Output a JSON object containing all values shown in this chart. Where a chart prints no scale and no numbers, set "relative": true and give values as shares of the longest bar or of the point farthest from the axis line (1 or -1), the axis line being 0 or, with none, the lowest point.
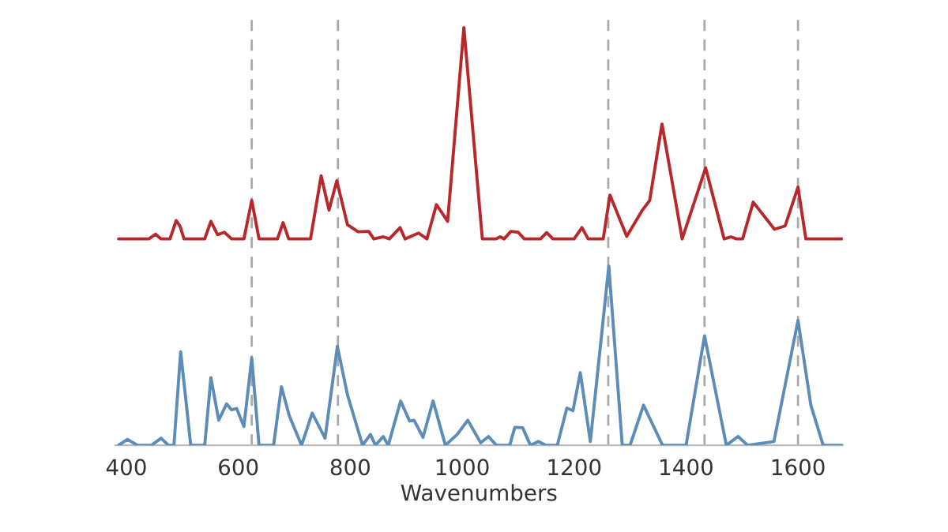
{
  "chart_data": {
    "type": "line",
    "relative": true,
    "xlabel": "Wavenumbers",
    "xlim": [
      380,
      1680
    ],
    "xticks": [
      400,
      600,
      800,
      1000,
      1200,
      1400,
      1600
    ],
    "grid": false,
    "legend": false,
    "marker": "none",
    "line_style": "solid",
    "series": [
      {
        "color": "#b8282a",
        "x": [
          386,
          440,
          452,
          462,
          478,
          489,
          496,
          503,
          540,
          551,
          563,
          575,
          588,
          610,
          624,
          637,
          670,
          680,
          690,
          729,
          748,
          762,
          776,
          795,
          814,
          833,
          842,
          859,
          870,
          889,
          898,
          922,
          937,
          954,
          974,
          1003,
          1036,
          1060,
          1068,
          1075,
          1087,
          1100,
          1111,
          1140,
          1151,
          1162,
          1200,
          1214,
          1225,
          1252,
          1264,
          1294,
          1321,
          1335,
          1357,
          1393,
          1435,
          1468,
          1480,
          1490,
          1501,
          1520,
          1558,
          1577,
          1600,
          1614,
          1680
        ],
        "values": [
          0.494,
          0.494,
          0.505,
          0.494,
          0.494,
          0.538,
          0.524,
          0.494,
          0.494,
          0.536,
          0.504,
          0.51,
          0.494,
          0.494,
          0.586,
          0.494,
          0.494,
          0.533,
          0.494,
          0.494,
          0.645,
          0.563,
          0.633,
          0.528,
          0.511,
          0.512,
          0.494,
          0.499,
          0.494,
          0.521,
          0.494,
          0.508,
          0.494,
          0.576,
          0.536,
          1.0,
          0.494,
          0.494,
          0.499,
          0.494,
          0.512,
          0.51,
          0.494,
          0.494,
          0.509,
          0.494,
          0.494,
          0.521,
          0.494,
          0.494,
          0.599,
          0.5,
          0.561,
          0.586,
          0.769,
          0.494,
          0.664,
          0.494,
          0.499,
          0.494,
          0.494,
          0.582,
          0.517,
          0.525,
          0.618,
          0.494,
          0.494
        ]
      },
      {
        "color": "#5b8db8",
        "x": [
          386,
          402,
          420,
          445,
          462,
          475,
          485,
          497,
          515,
          540,
          551,
          565,
          579,
          588,
          597,
          610,
          624,
          637,
          663,
          677,
          691,
          713,
          732,
          755,
          777,
          795,
          822,
          836,
          845,
          859,
          868,
          890,
          906,
          914,
          930,
          948,
          970,
          991,
          1010,
          1033,
          1047,
          1061,
          1085,
          1094,
          1108,
          1122,
          1136,
          1150,
          1170,
          1187,
          1198,
          1211,
          1229,
          1262,
          1286,
          1300,
          1324,
          1358,
          1400,
          1433,
          1472,
          1493,
          1510,
          1557,
          1600,
          1623,
          1645,
          1680
        ],
        "values": [
          0,
          0.014,
          0,
          0,
          0.017,
          0,
          0,
          0.224,
          0,
          0,
          0.162,
          0.06,
          0.099,
          0.085,
          0.088,
          0.045,
          0.209,
          0,
          0,
          0.14,
          0.071,
          0,
          0.077,
          0.017,
          0.237,
          0.121,
          0,
          0.026,
          0,
          0.021,
          0,
          0.106,
          0.058,
          0.06,
          0.019,
          0.106,
          0,
          0.026,
          0.06,
          0.006,
          0.021,
          0,
          0,
          0.043,
          0.042,
          0,
          0.009,
          0,
          0,
          0.089,
          0.083,
          0.174,
          0.009,
          0.429,
          0,
          0,
          0.096,
          0,
          0,
          0.262,
          0,
          0.021,
          0,
          0.009,
          0.299,
          0.096,
          0,
          0
        ]
      }
    ],
    "ref_lines": [
      {
        "axis": "x",
        "value": 624,
        "color": "#aaaaaa",
        "line_style": "dashed"
      },
      {
        "axis": "x",
        "value": 778,
        "color": "#aaaaaa",
        "line_style": "dashed"
      },
      {
        "axis": "x",
        "value": 1261,
        "color": "#aaaaaa",
        "line_style": "dashed"
      },
      {
        "axis": "x",
        "value": 1433,
        "color": "#aaaaaa",
        "line_style": "dashed"
      },
      {
        "axis": "x",
        "value": 1600,
        "color": "#aaaaaa",
        "line_style": "dashed"
      }
    ]
  }
}
